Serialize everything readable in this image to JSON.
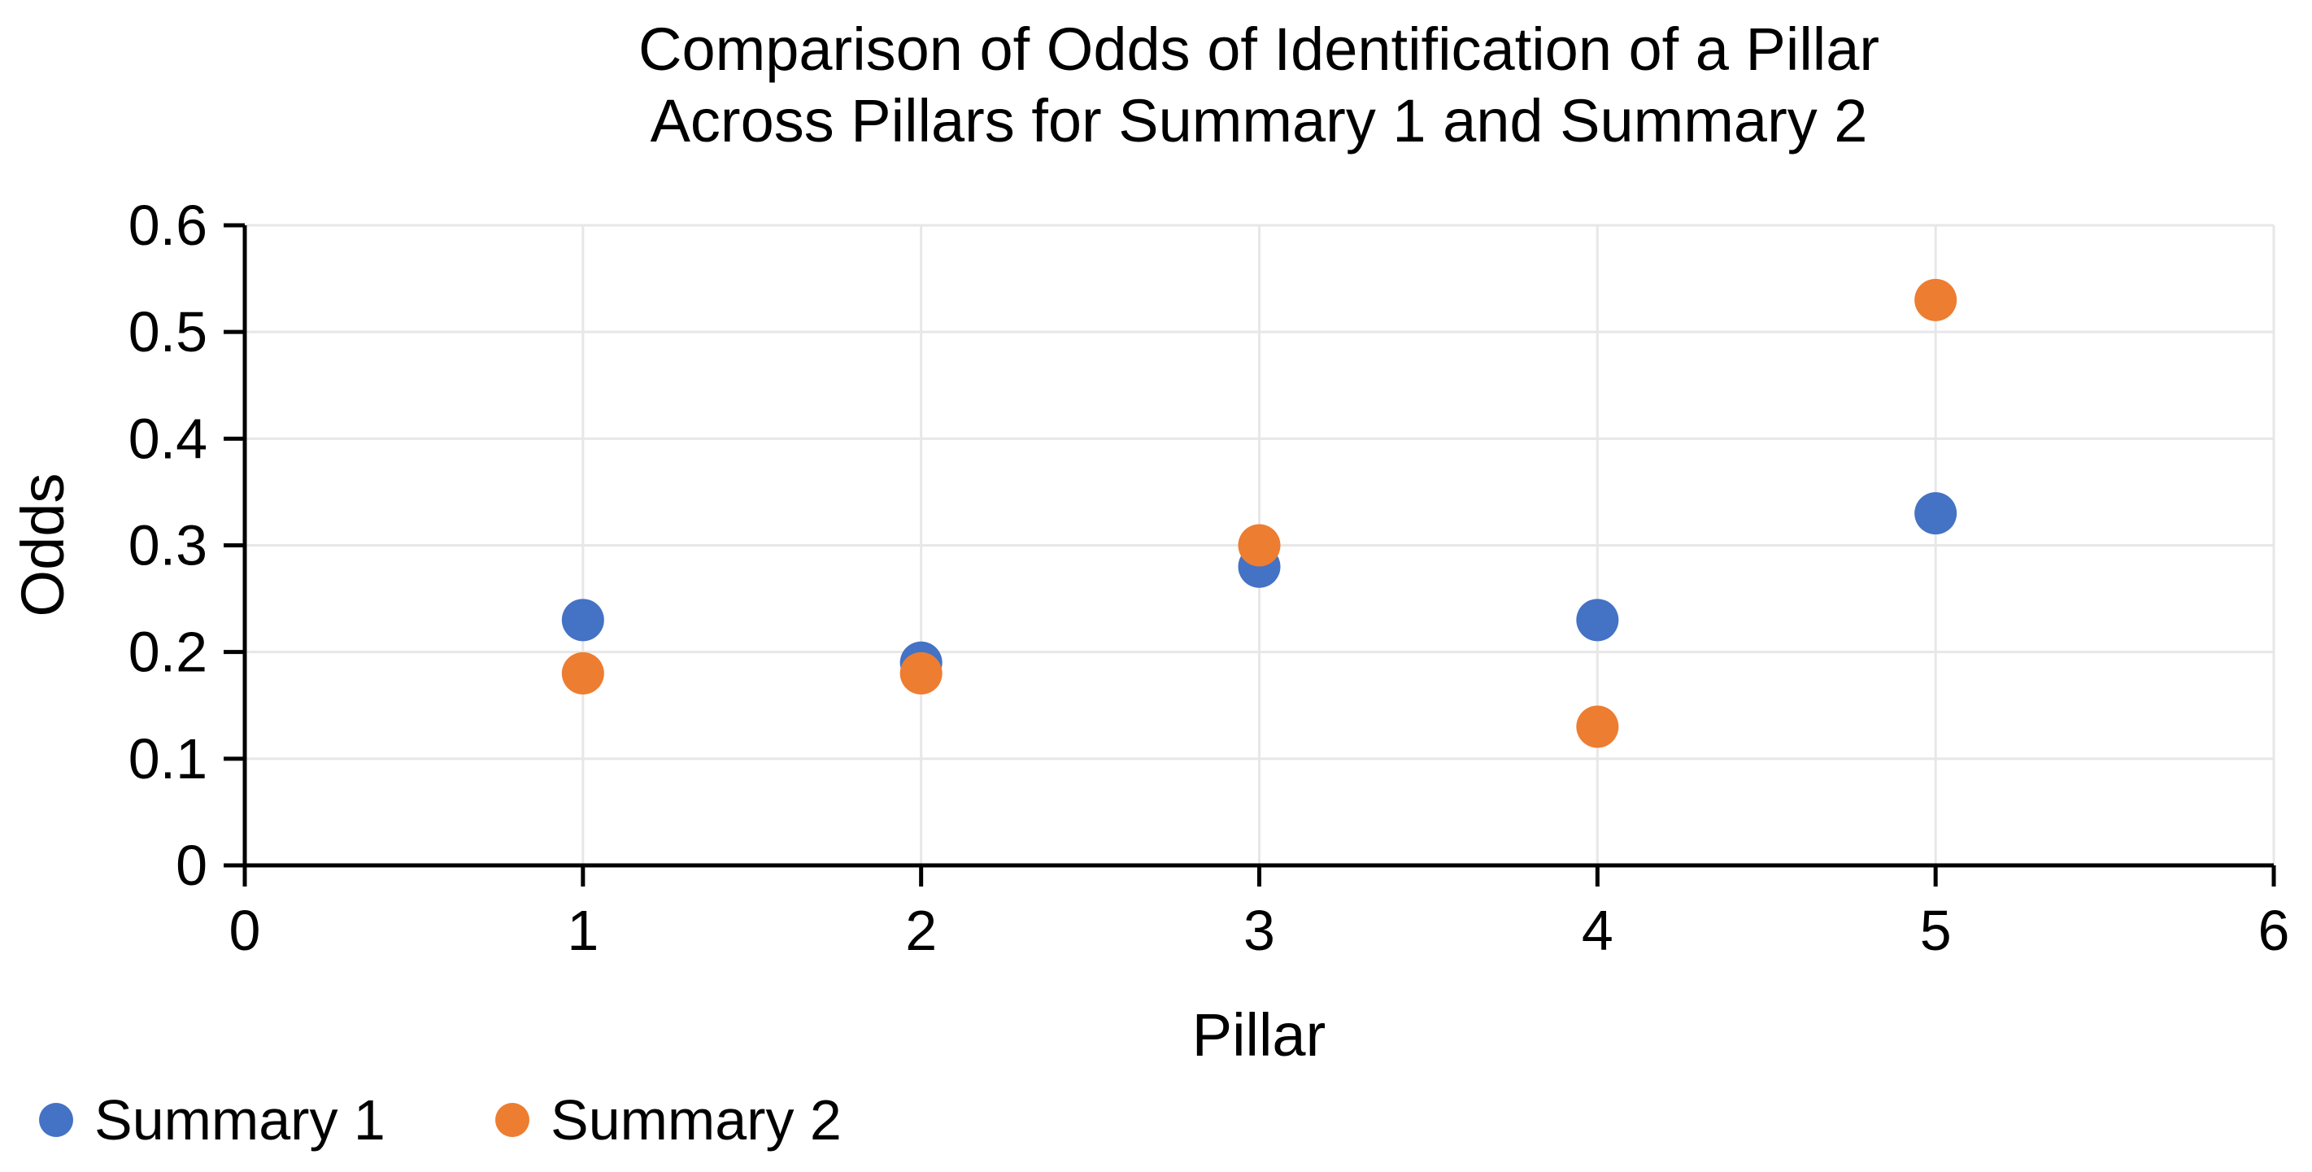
{
  "chart_data": {
    "type": "scatter",
    "title_line1": "Comparison of Odds of Identification of a Pillar",
    "title_line2": "Across Pillars for Summary 1 and Summary 2",
    "xlabel": "Pillar",
    "ylabel": "Odds",
    "xlim": [
      0,
      6
    ],
    "ylim": [
      0,
      0.6
    ],
    "x_ticks": [
      0,
      1,
      2,
      3,
      4,
      5,
      6
    ],
    "y_ticks": [
      0,
      0.1,
      0.2,
      0.3,
      0.4,
      0.5,
      0.6
    ],
    "grid": true,
    "legend_position": "bottom-left",
    "x": [
      1,
      2,
      3,
      4,
      5
    ],
    "series": [
      {
        "name": "Summary 1",
        "color": "#4472C4",
        "values": [
          0.23,
          0.19,
          0.28,
          0.23,
          0.33
        ]
      },
      {
        "name": "Summary 2",
        "color": "#ED7D31",
        "values": [
          0.18,
          0.18,
          0.3,
          0.13,
          0.53
        ]
      }
    ]
  }
}
